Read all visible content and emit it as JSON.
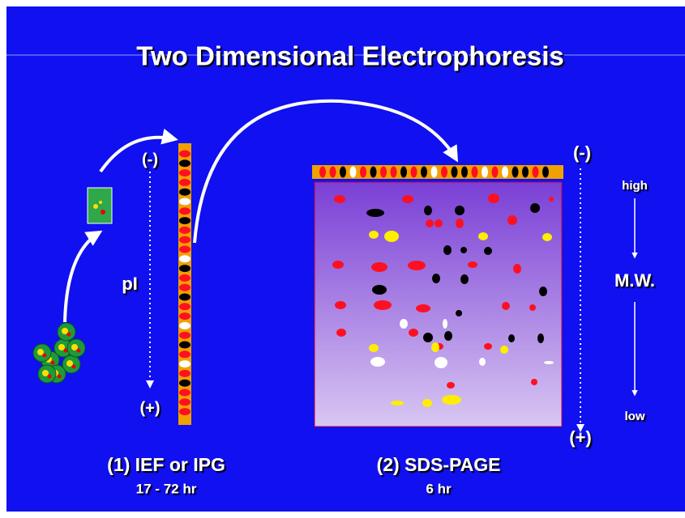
{
  "title": "Two Dimensional Electrophoresis",
  "ief": {
    "top": "(-)",
    "axis_label": "pI",
    "bottom": "(+)",
    "caption": "(1) IEF or IPG",
    "time": "17 - 72 hr"
  },
  "sds": {
    "top": "(-)",
    "bottom": "(+)",
    "high": "high",
    "axis_label": "M.W.",
    "low": "low",
    "caption": "(2) SDS-PAGE",
    "time": "6 hr"
  }
}
